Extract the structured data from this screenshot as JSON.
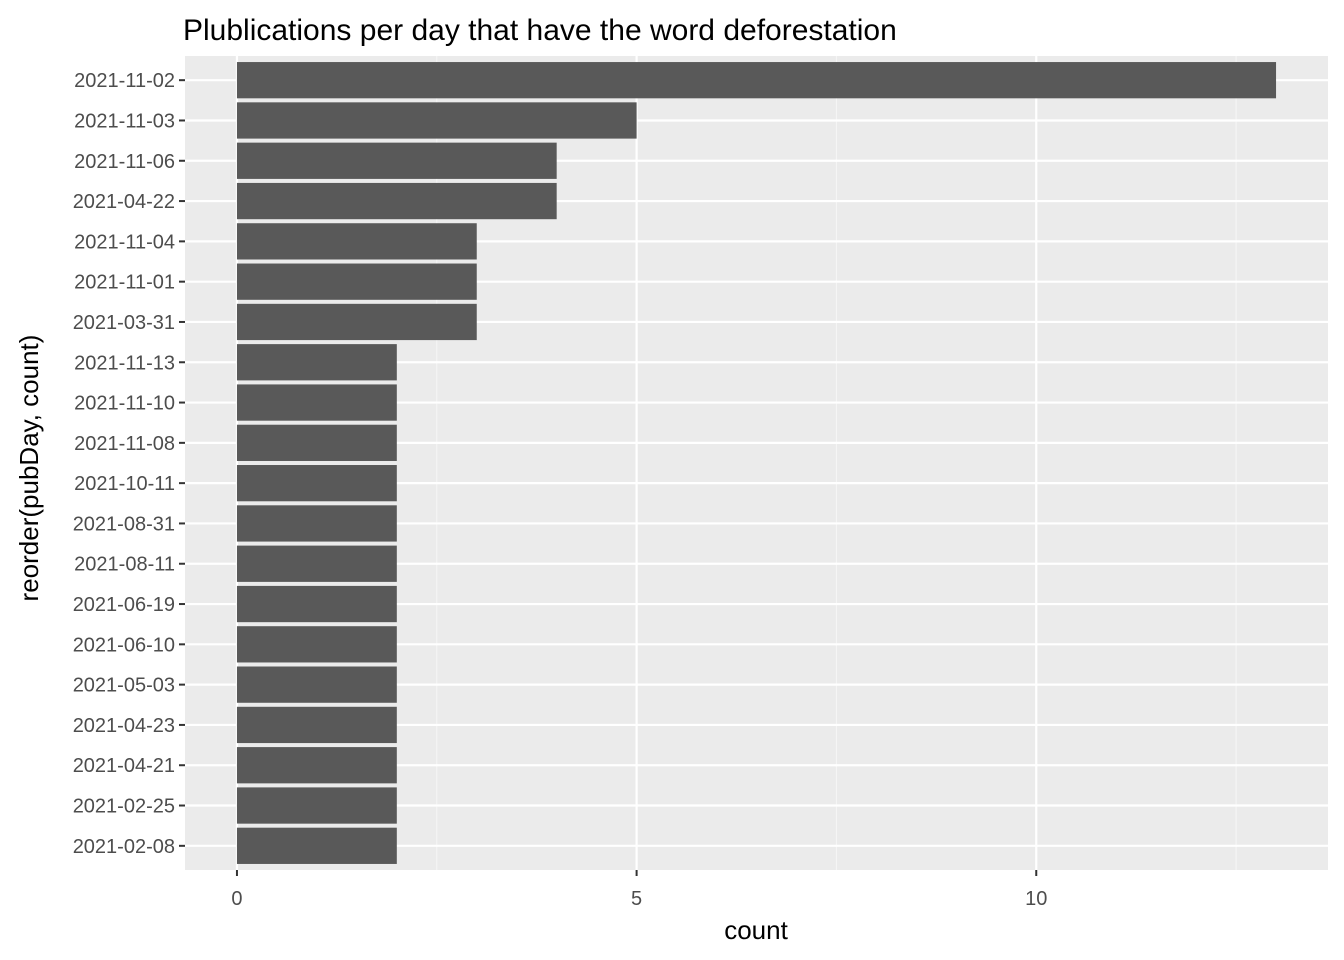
{
  "chart_data": {
    "type": "bar",
    "orientation": "horizontal",
    "title": "Plublications per day that have the word deforestation",
    "xlabel": "count",
    "ylabel": "reorder(pubDay, count)",
    "categories": [
      "2021-11-02",
      "2021-11-03",
      "2021-11-06",
      "2021-04-22",
      "2021-11-04",
      "2021-11-01",
      "2021-03-31",
      "2021-11-13",
      "2021-11-10",
      "2021-11-08",
      "2021-10-11",
      "2021-08-31",
      "2021-08-11",
      "2021-06-19",
      "2021-06-10",
      "2021-05-03",
      "2021-04-23",
      "2021-04-21",
      "2021-02-25",
      "2021-02-08"
    ],
    "values": [
      13,
      5,
      4,
      4,
      3,
      3,
      3,
      2,
      2,
      2,
      2,
      2,
      2,
      2,
      2,
      2,
      2,
      2,
      2,
      2
    ],
    "xlim": [
      -0.65,
      13.65
    ],
    "xticks": [
      0,
      5,
      10
    ],
    "xtick_labels": [
      "0",
      "5",
      "10"
    ],
    "grid": true,
    "colors": {
      "bar": "#595959",
      "panel": "#ebebeb",
      "grid_major": "#ffffff",
      "grid_minor": "#f5f5f5",
      "tick_text": "#4d4d4d",
      "tick_mark": "#333333"
    }
  }
}
